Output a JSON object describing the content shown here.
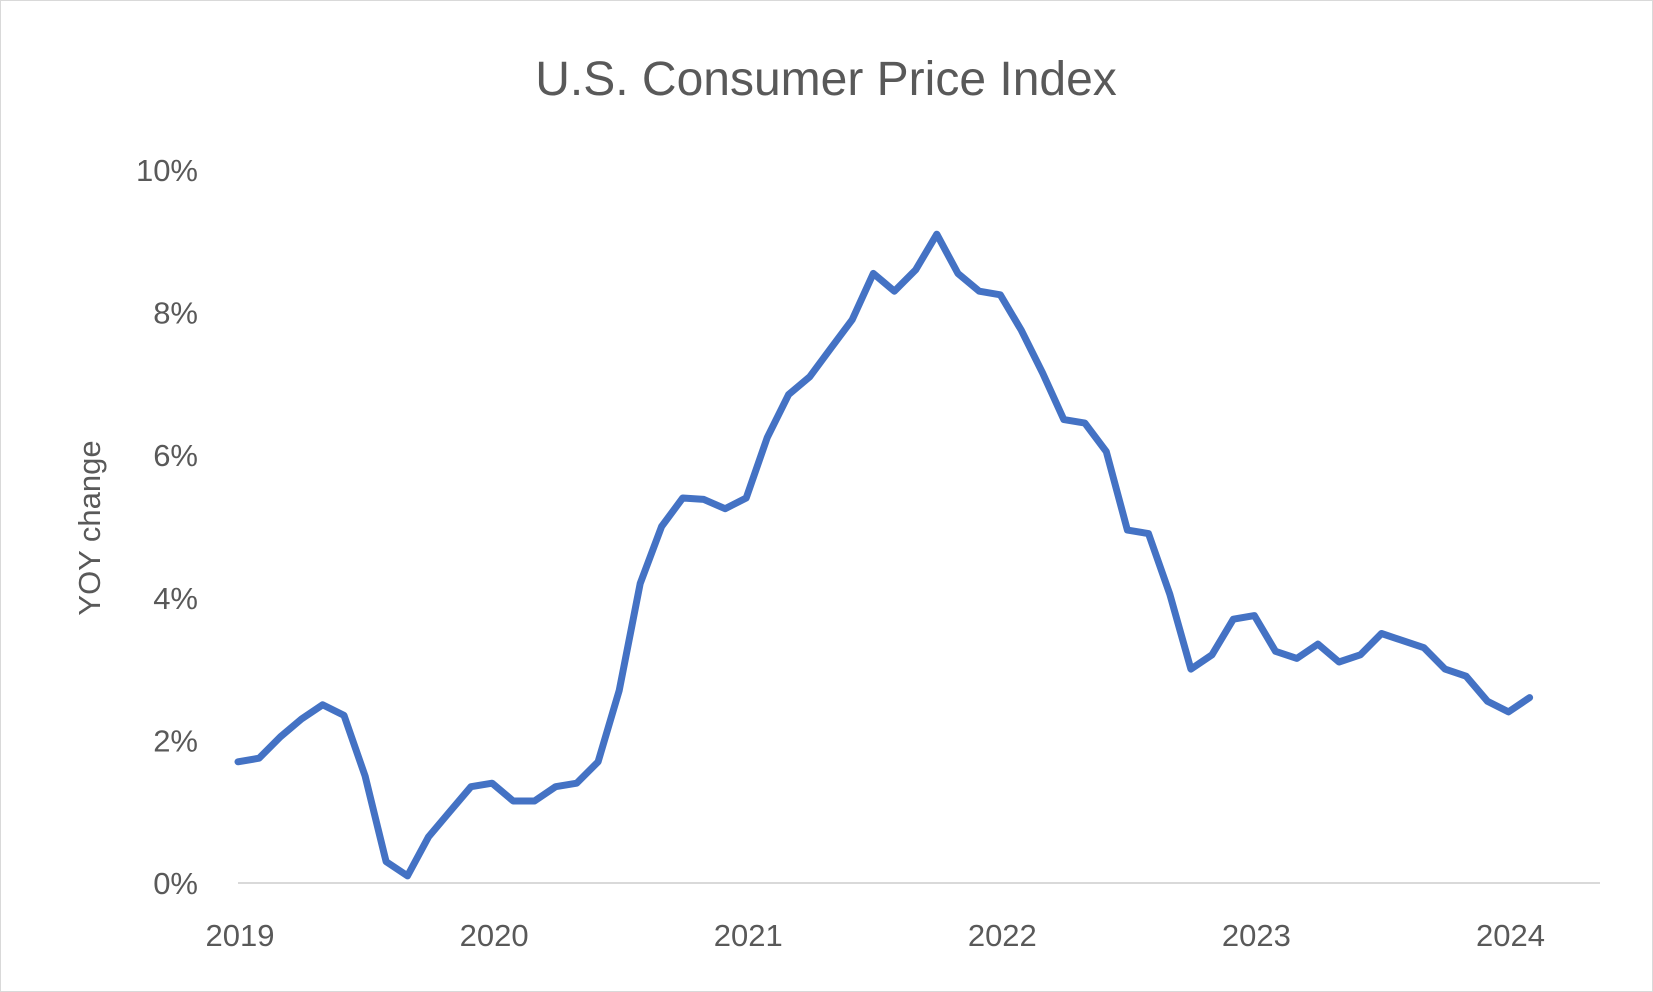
{
  "chart_data": {
    "type": "line",
    "title": "U.S. Consumer Price Index",
    "xlabel": "",
    "ylabel": "YOY change",
    "xlim": [
      2019,
      2024.36
    ],
    "ylim": [
      0,
      10
    ],
    "grid": false,
    "legend": "none",
    "x_ticks": [
      2019,
      2020,
      2021,
      2022,
      2023,
      2024
    ],
    "y_ticks": [
      0,
      2,
      4,
      6,
      8,
      10
    ],
    "y_tick_labels": [
      "0%",
      "2%",
      "4%",
      "6%",
      "8%",
      "10%"
    ],
    "x_tick_labels": [
      "2019",
      "2020",
      "2021",
      "2022",
      "2023",
      "2024"
    ],
    "series": [
      {
        "color": "#4472C4",
        "x": [
          2019.0,
          2019.083,
          2019.167,
          2019.25,
          2019.333,
          2019.417,
          2019.5,
          2019.583,
          2019.667,
          2019.75,
          2019.833,
          2019.917,
          2020.0,
          2020.083,
          2020.167,
          2020.25,
          2020.333,
          2020.417,
          2020.5,
          2020.583,
          2020.667,
          2020.75,
          2020.833,
          2020.917,
          2021.0,
          2021.083,
          2021.167,
          2021.25,
          2021.333,
          2021.417,
          2021.5,
          2021.583,
          2021.667,
          2021.75,
          2021.833,
          2021.917,
          2022.0,
          2022.083,
          2022.167,
          2022.25,
          2022.333,
          2022.417,
          2022.5,
          2022.583,
          2022.667,
          2022.75,
          2022.833,
          2022.917,
          2023.0,
          2023.083,
          2023.167,
          2023.25,
          2023.333,
          2023.417,
          2023.5,
          2023.583,
          2023.667,
          2023.75,
          2023.833,
          2023.917,
          2024.0,
          2024.083
        ],
        "y": [
          1.7,
          1.75,
          2.05,
          2.3,
          2.5,
          2.35,
          1.5,
          0.3,
          0.1,
          0.65,
          1.0,
          1.35,
          1.4,
          1.15,
          1.15,
          1.35,
          1.4,
          1.7,
          2.7,
          4.2,
          5.0,
          5.4,
          5.38,
          5.25,
          5.4,
          6.25,
          6.85,
          7.1,
          7.5,
          7.9,
          8.55,
          8.3,
          8.6,
          9.1,
          8.55,
          8.3,
          8.25,
          7.75,
          7.15,
          6.5,
          6.45,
          6.05,
          4.95,
          4.9,
          4.05,
          3.0,
          3.2,
          3.7,
          3.75,
          3.25,
          3.15,
          3.35,
          3.1,
          3.2,
          3.5,
          3.4,
          3.3,
          3.0,
          2.9,
          2.55,
          2.4,
          2.6
        ]
      }
    ]
  }
}
